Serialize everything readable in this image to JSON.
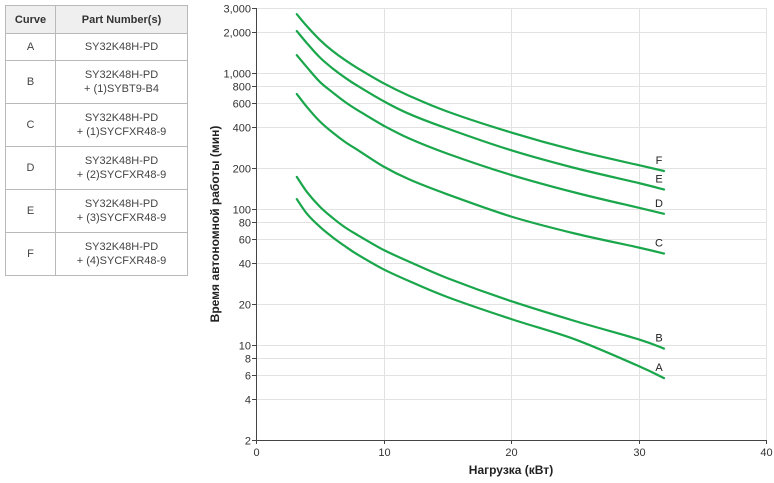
{
  "legend_table": {
    "headers": [
      "Curve",
      "Part Number(s)"
    ],
    "rows": [
      {
        "curve": "A",
        "lines": [
          "SY32K48H-PD"
        ]
      },
      {
        "curve": "B",
        "lines": [
          "SY32K48H-PD",
          "+ (1)SYBT9-B4"
        ]
      },
      {
        "curve": "C",
        "lines": [
          "SY32K48H-PD",
          "+ (1)SYCFXR48-9"
        ]
      },
      {
        "curve": "D",
        "lines": [
          "SY32K48H-PD",
          "+ (2)SYCFXR48-9"
        ]
      },
      {
        "curve": "E",
        "lines": [
          "SY32K48H-PD",
          "+ (3)SYCFXR48-9"
        ]
      },
      {
        "curve": "F",
        "lines": [
          "SY32K48H-PD",
          "+ (4)SYCFXR48-9"
        ]
      }
    ]
  },
  "chart_data": {
    "type": "line",
    "xlabel": "Нагрузка (кВт)",
    "ylabel": "Время автономной работы (мин)",
    "xlim": [
      0,
      40
    ],
    "ylim": [
      2,
      3000
    ],
    "y_scale": "log",
    "x_ticks": [
      0,
      10,
      20,
      30,
      40
    ],
    "x_tick_labels": [
      "0",
      "10",
      "20",
      "30",
      "40"
    ],
    "y_ticks": [
      2,
      4,
      6,
      8,
      10,
      20,
      40,
      60,
      80,
      100,
      200,
      400,
      600,
      800,
      1000,
      2000,
      3000
    ],
    "y_tick_labels": [
      "2",
      "4",
      "6",
      "8",
      "10",
      "20",
      "40",
      "60",
      "80",
      "100",
      "200",
      "400",
      "600",
      "800",
      "1,000",
      "2,000",
      "3,000"
    ],
    "grid": true,
    "line_color": "#1aa64b",
    "series": [
      {
        "name": "A",
        "x": [
          3.2,
          4,
          5,
          6,
          7,
          8,
          10,
          12,
          15,
          20,
          25,
          30,
          32
        ],
        "y": [
          118,
          92,
          74,
          62,
          53,
          46,
          36,
          29.5,
          22.5,
          15.5,
          11,
          7,
          5.7
        ]
      },
      {
        "name": "B",
        "x": [
          3.2,
          4,
          5,
          6,
          7,
          8,
          10,
          12,
          15,
          20,
          25,
          30,
          32
        ],
        "y": [
          172,
          133,
          104,
          86,
          73,
          64,
          50,
          41,
          31,
          21,
          15,
          11,
          9.4
        ]
      },
      {
        "name": "C",
        "x": [
          3.2,
          4,
          5,
          6,
          7,
          8,
          10,
          12,
          15,
          20,
          25,
          30,
          32
        ],
        "y": [
          700,
          560,
          440,
          365,
          310,
          270,
          205,
          165,
          128,
          88,
          66,
          52,
          47
        ]
      },
      {
        "name": "D",
        "x": [
          3.2,
          4,
          5,
          6,
          7,
          8,
          10,
          12,
          15,
          20,
          25,
          30,
          32
        ],
        "y": [
          1350,
          1100,
          860,
          720,
          610,
          530,
          410,
          330,
          255,
          178,
          132,
          102,
          92
        ]
      },
      {
        "name": "E",
        "x": [
          3.2,
          4,
          5,
          6,
          7,
          8,
          10,
          12,
          15,
          20,
          25,
          30,
          32
        ],
        "y": [
          2030,
          1650,
          1300,
          1080,
          920,
          800,
          620,
          500,
          390,
          270,
          200,
          155,
          139
        ]
      },
      {
        "name": "F",
        "x": [
          3.2,
          4,
          5,
          6,
          7,
          8,
          10,
          12,
          15,
          20,
          25,
          30,
          32
        ],
        "y": [
          2700,
          2200,
          1750,
          1450,
          1240,
          1080,
          840,
          680,
          520,
          365,
          270,
          210,
          190
        ]
      }
    ]
  }
}
